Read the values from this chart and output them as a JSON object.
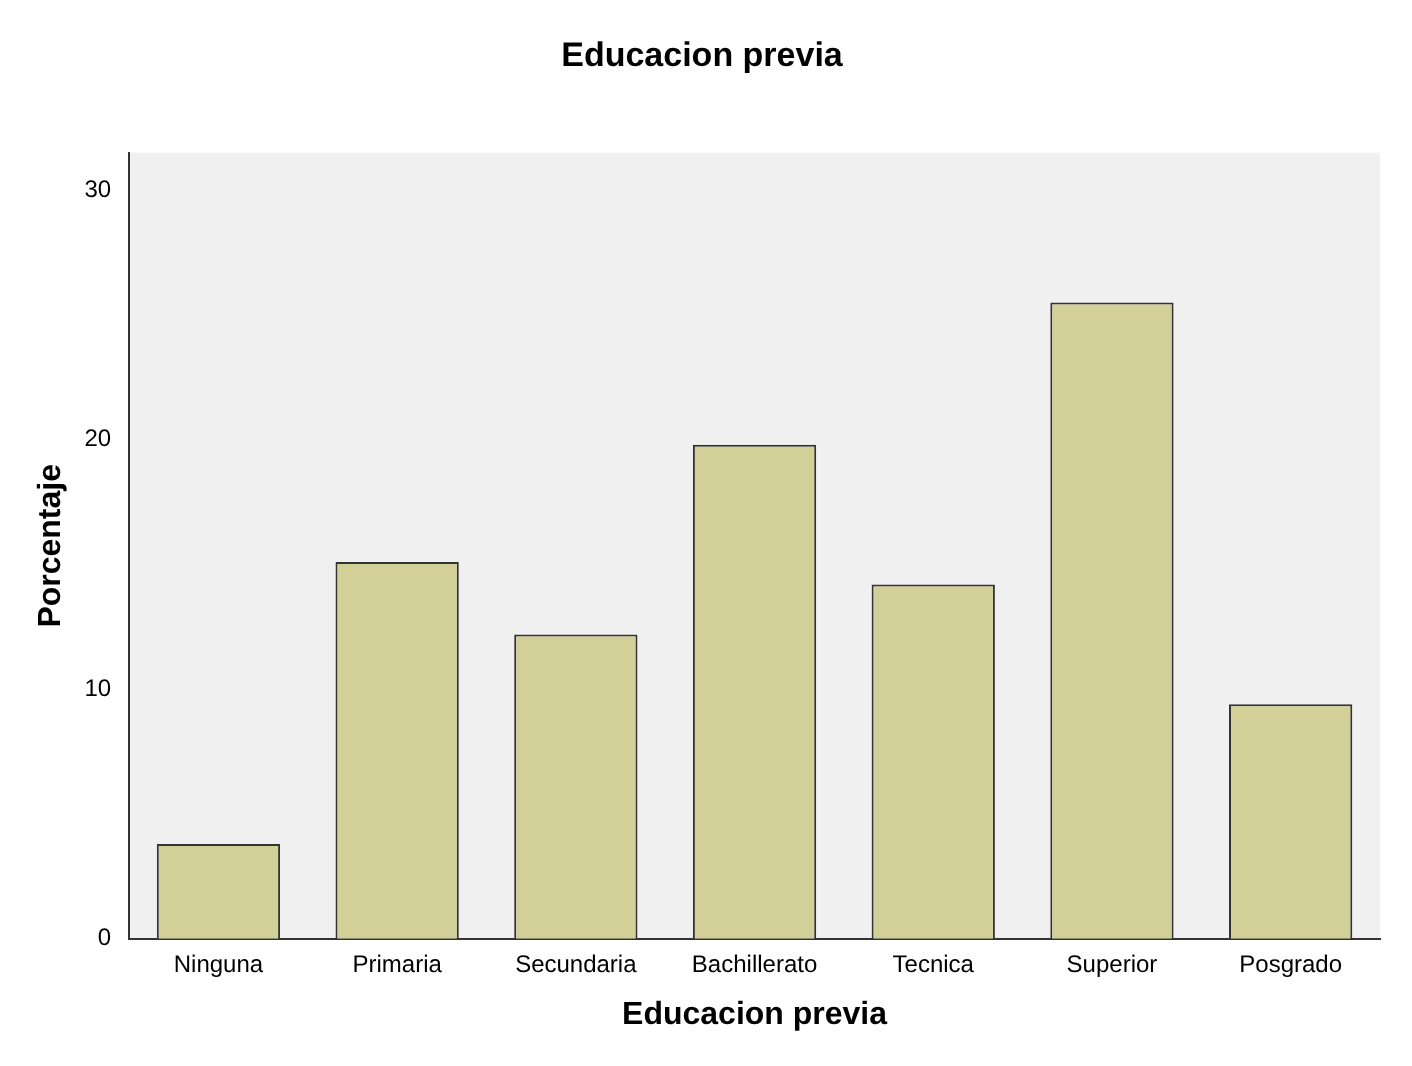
{
  "chart_data": {
    "type": "bar",
    "title": "Educacion previa",
    "xlabel": "Educacion previa",
    "ylabel": "Porcentaje",
    "categories": [
      "Ninguna",
      "Primaria",
      "Secundaria",
      "Bachillerato",
      "Tecnica",
      "Superior",
      "Posgrado"
    ],
    "values": [
      3.8,
      15.1,
      12.2,
      19.8,
      14.2,
      25.5,
      9.4
    ],
    "color": "#d3cf98",
    "ylim": [
      0,
      31.5
    ],
    "yticks": [
      0,
      10,
      20,
      30
    ],
    "grid": false,
    "legend": false
  }
}
